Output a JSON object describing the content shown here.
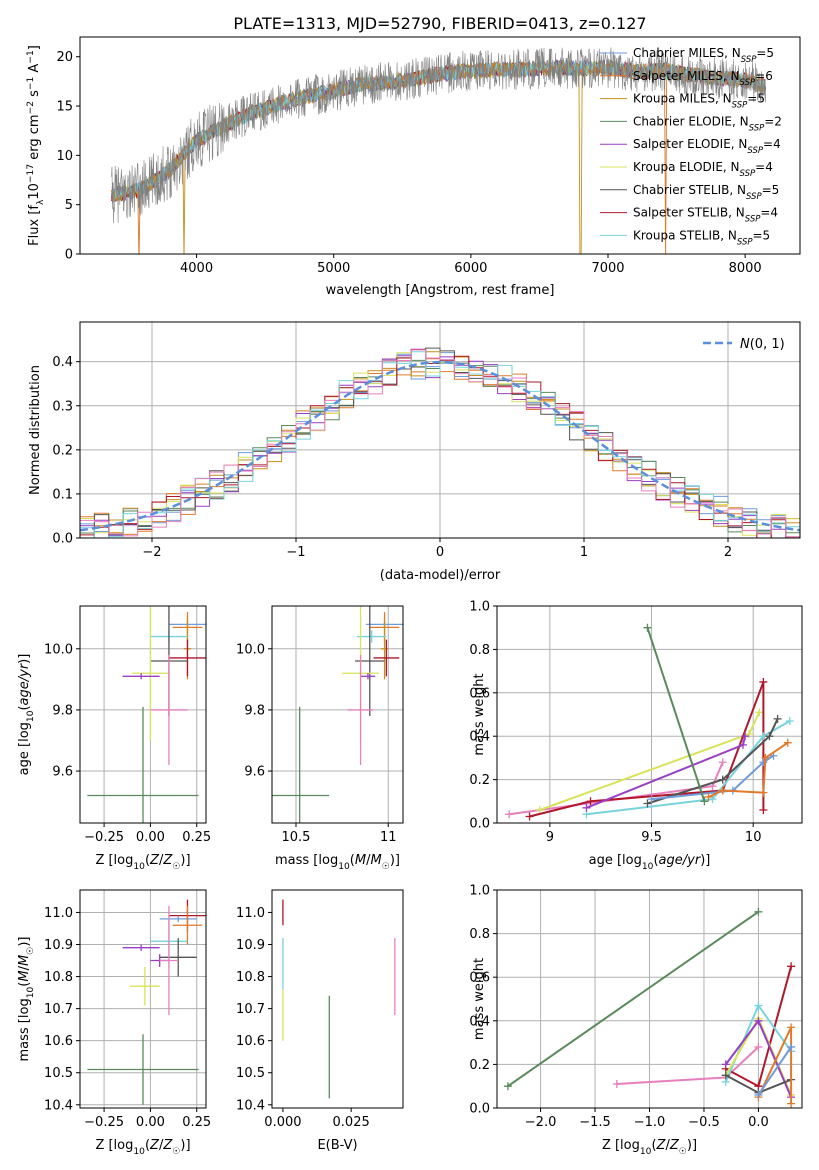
{
  "figure_title": "PLATE=1313, MJD=52790, FIBERID=0413, z=0.127",
  "colors": {
    "ch_miles": "#6f9bdb",
    "sa_miles": "#e07a2a",
    "kr_miles": "#c98f1c",
    "ch_elodie": "#5a8a5c",
    "sa_elodie": "#9a3ec5",
    "kr_elodie": "#d8e35a",
    "ch_stelib": "#555555",
    "sa_stelib": "#b0172a",
    "kr_stelib": "#77d3de",
    "pink": "#e87fbd",
    "gray_spec": "#808080",
    "normal_curve": "#5b8fdb",
    "grid": "#b0b0b0"
  },
  "legend_entries": [
    {
      "key": "ch_miles",
      "base": "Chabrier MILES, N",
      "sub": "SSP",
      "suffix": "=5"
    },
    {
      "key": "sa_miles",
      "base": "Salpeter MILES, N",
      "sub": "SSP",
      "suffix": "=6"
    },
    {
      "key": "kr_miles",
      "base": "Kroupa MILES, N",
      "sub": "SSP",
      "suffix": "=5"
    },
    {
      "key": "ch_elodie",
      "base": "Chabrier ELODIE, N",
      "sub": "SSP",
      "suffix": "=2"
    },
    {
      "key": "sa_elodie",
      "base": "Salpeter ELODIE, N",
      "sub": "SSP",
      "suffix": "=4"
    },
    {
      "key": "kr_elodie",
      "base": "Kroupa ELODIE, N",
      "sub": "SSP",
      "suffix": "=4"
    },
    {
      "key": "ch_stelib",
      "base": "Chabrier STELIB, N",
      "sub": "SSP",
      "suffix": "=5"
    },
    {
      "key": "sa_stelib",
      "base": "Salpeter STELIB, N",
      "sub": "SSP",
      "suffix": "=4"
    },
    {
      "key": "kr_stelib",
      "base": "Kroupa STELIB, N",
      "sub": "SSP",
      "suffix": "=5"
    }
  ],
  "chart_data": [
    {
      "id": "spectrum",
      "type": "line",
      "xlabel": "wavelength [Angstrom, rest frame]",
      "ylabel": "Flux [f_λ 10^-17 erg cm^-2 s^-1 A^-1]",
      "xlim": [
        3150,
        8400
      ],
      "ylim": [
        0,
        22
      ],
      "xticks": [
        4000,
        5000,
        6000,
        7000,
        8000
      ],
      "yticks": [
        0,
        5,
        10,
        15,
        20
      ],
      "grid": false,
      "legend_position": "top-right",
      "continuum": {
        "x": [
          3400,
          3600,
          3800,
          4000,
          4200,
          4400,
          4600,
          4800,
          5000,
          5200,
          5400,
          5600,
          5800,
          6000,
          6200,
          6400,
          6600,
          6800,
          7000,
          7200,
          7400,
          7600,
          7800,
          8000,
          8150
        ],
        "y": [
          6.0,
          6.5,
          8.5,
          11.5,
          13.0,
          14.3,
          15.2,
          16.0,
          16.5,
          17.2,
          17.4,
          17.8,
          18.3,
          18.6,
          18.7,
          18.7,
          18.9,
          18.8,
          18.9,
          18.5,
          18.6,
          18.2,
          17.8,
          17.6,
          17.0
        ]
      },
      "model_drops": [
        {
          "x": 3580,
          "key": "sa_miles"
        },
        {
          "x": 3905,
          "key": "kr_miles"
        },
        {
          "x": 6800,
          "key": "kr_miles"
        },
        {
          "x": 7420,
          "key": "sa_miles"
        }
      ]
    },
    {
      "id": "residuals",
      "type": "histogram",
      "xlabel": "(data-model)/error",
      "ylabel": "Normed distribution",
      "xlim": [
        -2.5,
        2.5
      ],
      "ylim": [
        0,
        0.49
      ],
      "xticks": [
        -2,
        -1,
        0,
        1,
        2
      ],
      "xtick_labels": [
        "−2",
        "−1",
        "0",
        "1",
        "2"
      ],
      "yticks": [
        0.0,
        0.1,
        0.2,
        0.3,
        0.4
      ],
      "grid": true,
      "legend": {
        "label": "N(0,1)",
        "position": "top-right"
      },
      "bin_width": 0.1
    },
    {
      "id": "age_vs_Z",
      "type": "errorbar",
      "xlabel": "Z [log10(Z/Z☉)]",
      "ylabel": "age [log10(age/yr)]",
      "xlim": [
        -0.38,
        0.3
      ],
      "ylim": [
        9.43,
        10.14
      ],
      "xticks": [
        -0.25,
        0.0,
        0.25
      ],
      "xtick_labels": [
        "−0.25",
        "0.00",
        "0.25"
      ],
      "yticks": [
        9.6,
        9.8,
        10.0
      ],
      "grid": true,
      "points": [
        {
          "key": "ch_miles",
          "x": 0.2,
          "xerr": 0.1,
          "y": 10.08,
          "yerr": 0.01
        },
        {
          "key": "sa_miles",
          "x": 0.2,
          "xerr": 0.08,
          "y": 10.07,
          "yerr": 0.05
        },
        {
          "key": "kr_miles",
          "x": 0.2,
          "xerr": 0.02,
          "y": 10.0,
          "yerr": 0.1
        },
        {
          "key": "kr_stelib",
          "x": 0.1,
          "xerr": 0.1,
          "y": 10.04,
          "yerr": 0.02
        },
        {
          "key": "sa_stelib",
          "x": 0.2,
          "xerr": 0.1,
          "y": 9.97,
          "yerr": 0.06
        },
        {
          "key": "ch_stelib",
          "x": 0.1,
          "xerr": 0.1,
          "y": 9.96,
          "yerr": 0.18
        },
        {
          "key": "kr_elodie",
          "x": 0.0,
          "xerr": 0.1,
          "y": 9.92,
          "yerr": 0.22
        },
        {
          "key": "sa_elodie",
          "x": -0.05,
          "xerr": 0.1,
          "y": 9.91,
          "yerr": 0.01
        },
        {
          "key": "pink",
          "x": 0.1,
          "xerr": 0.1,
          "y": 9.8,
          "yerr": 0.18
        },
        {
          "key": "ch_elodie",
          "x": -0.04,
          "xerr": 0.3,
          "y": 9.52,
          "yerr": 0.29
        }
      ]
    },
    {
      "id": "age_vs_mass",
      "type": "errorbar",
      "xlabel": "mass [log10(M/M☉)]",
      "ylabel": "",
      "xlim": [
        10.37,
        11.08
      ],
      "ylim": [
        9.43,
        10.14
      ],
      "xticks": [
        10.5,
        11.0
      ],
      "yticks": [
        9.6,
        9.8,
        10.0
      ],
      "grid": true,
      "points": [
        {
          "key": "ch_miles",
          "x": 10.98,
          "xerr": 0.1,
          "y": 10.08,
          "yerr": 0.01
        },
        {
          "key": "sa_miles",
          "x": 10.98,
          "xerr": 0.08,
          "y": 10.07,
          "yerr": 0.05
        },
        {
          "key": "kr_miles",
          "x": 10.98,
          "xerr": 0.02,
          "y": 10.0,
          "yerr": 0.1
        },
        {
          "key": "kr_stelib",
          "x": 10.91,
          "xerr": 0.08,
          "y": 10.04,
          "yerr": 0.02
        },
        {
          "key": "sa_stelib",
          "x": 10.99,
          "xerr": 0.07,
          "y": 9.97,
          "yerr": 0.06
        },
        {
          "key": "ch_stelib",
          "x": 10.9,
          "xerr": 0.08,
          "y": 9.96,
          "yerr": 0.18
        },
        {
          "key": "kr_elodie",
          "x": 10.85,
          "xerr": 0.1,
          "y": 9.92,
          "yerr": 0.22
        },
        {
          "key": "sa_elodie",
          "x": 10.89,
          "xerr": 0.04,
          "y": 9.91,
          "yerr": 0.01
        },
        {
          "key": "pink",
          "x": 10.85,
          "xerr": 0.07,
          "y": 9.8,
          "yerr": 0.18
        },
        {
          "key": "ch_elodie",
          "x": 10.52,
          "xerr": 0.16,
          "y": 9.52,
          "yerr": 0.29
        }
      ]
    },
    {
      "id": "weight_vs_age",
      "type": "line",
      "xlabel": "age [log10(age/yr)]",
      "ylabel": "mass weight",
      "xlim": [
        8.74,
        10.24
      ],
      "ylim": [
        0.0,
        1.0
      ],
      "xticks": [
        9.0,
        9.5,
        10.0
      ],
      "yticks": [
        0.0,
        0.2,
        0.4,
        0.6,
        0.8,
        1.0
      ],
      "grid": true,
      "series": [
        {
          "key": "pink",
          "x": [
            8.8,
            9.8,
            9.85
          ],
          "y": [
            0.04,
            0.17,
            0.28
          ]
        },
        {
          "key": "kr_elodie",
          "x": [
            8.95,
            9.98,
            10.03
          ],
          "y": [
            0.06,
            0.41,
            0.51
          ]
        },
        {
          "key": "sa_stelib",
          "x": [
            8.9,
            9.2,
            9.85,
            10.05,
            10.05
          ],
          "y": [
            0.03,
            0.1,
            0.15,
            0.65,
            0.06
          ]
        },
        {
          "key": "kr_stelib",
          "x": [
            9.18,
            9.8,
            10.05,
            10.18
          ],
          "y": [
            0.04,
            0.11,
            0.4,
            0.47
          ]
        },
        {
          "key": "sa_elodie",
          "x": [
            9.18,
            9.95,
            9.96
          ],
          "y": [
            0.07,
            0.36,
            0.4
          ]
        },
        {
          "key": "ch_stelib",
          "x": [
            9.48,
            9.85,
            10.08,
            10.12
          ],
          "y": [
            0.09,
            0.2,
            0.4,
            0.48
          ]
        },
        {
          "key": "ch_miles",
          "x": [
            9.5,
            9.9,
            10.05,
            10.1
          ],
          "y": [
            0.11,
            0.15,
            0.28,
            0.31
          ]
        },
        {
          "key": "sa_miles",
          "x": [
            9.78,
            9.85,
            10.05,
            10.06,
            10.17
          ],
          "y": [
            0.12,
            0.15,
            0.14,
            0.3,
            0.37
          ]
        },
        {
          "key": "ch_elodie",
          "x": [
            9.48,
            9.76
          ],
          "y": [
            0.9,
            0.1
          ]
        }
      ]
    },
    {
      "id": "mass_vs_Z",
      "type": "errorbar",
      "xlabel": "Z [log10(Z/Z☉)]",
      "ylabel": "mass [log10(M/M☉)]",
      "xlim": [
        -0.38,
        0.3
      ],
      "ylim": [
        10.39,
        11.07
      ],
      "xticks": [
        -0.25,
        0.0,
        0.25
      ],
      "xtick_labels": [
        "−0.25",
        "0.00",
        "0.25"
      ],
      "yticks": [
        10.4,
        10.5,
        10.6,
        10.7,
        10.8,
        10.9,
        11.0
      ],
      "grid": true,
      "points": [
        {
          "key": "sa_stelib",
          "x": 0.2,
          "xerr": 0.1,
          "y": 10.99,
          "yerr": 0.05
        },
        {
          "key": "ch_miles",
          "x": 0.15,
          "xerr": 0.1,
          "y": 10.98,
          "yerr": 0.01
        },
        {
          "key": "sa_miles",
          "x": 0.2,
          "xerr": 0.08,
          "y": 10.96,
          "yerr": 0.06
        },
        {
          "key": "kr_stelib",
          "x": 0.1,
          "xerr": 0.1,
          "y": 10.91,
          "yerr": 0.08
        },
        {
          "key": "sa_elodie",
          "x": -0.05,
          "xerr": 0.1,
          "y": 10.89,
          "yerr": 0.01
        },
        {
          "key": "ch_stelib",
          "x": 0.15,
          "xerr": 0.1,
          "y": 10.86,
          "yerr": 0.06
        },
        {
          "key": "sa_elodie",
          "x": 0.05,
          "xerr": 0.05,
          "y": 10.85,
          "yerr": 0.02
        },
        {
          "key": "kr_elodie",
          "x": -0.03,
          "xerr": 0.08,
          "y": 10.77,
          "yerr": 0.06
        },
        {
          "key": "pink",
          "x": 0.1,
          "xerr": 0.05,
          "y": 10.85,
          "yerr": 0.17
        },
        {
          "key": "ch_elodie",
          "x": -0.04,
          "xerr": 0.3,
          "y": 10.51,
          "yerr": 0.11
        }
      ]
    },
    {
      "id": "mass_vs_ebv",
      "type": "errorbar",
      "xlabel": "E(B-V)",
      "ylabel": "",
      "xlim": [
        -0.004,
        0.044
      ],
      "ylim": [
        10.39,
        11.07
      ],
      "xticks": [
        0.0,
        0.025
      ],
      "xtick_labels": [
        "0.000",
        "0.025"
      ],
      "yticks": [
        10.4,
        10.5,
        10.6,
        10.7,
        10.8,
        10.9,
        11.0
      ],
      "grid": false,
      "points": [
        {
          "key": "sa_stelib",
          "x": 0.0,
          "xerr": 0.0,
          "y": 11.0,
          "yerr": 0.04
        },
        {
          "key": "kr_stelib",
          "x": 0.0,
          "xerr": 0.0,
          "y": 10.84,
          "yerr": 0.08
        },
        {
          "key": "kr_elodie",
          "x": 0.0,
          "xerr": 0.0,
          "y": 10.68,
          "yerr": 0.08
        },
        {
          "key": "ch_elodie",
          "x": 0.017,
          "xerr": 0.0,
          "y": 10.58,
          "yerr": 0.16
        },
        {
          "key": "pink",
          "x": 0.041,
          "xerr": 0.0,
          "y": 10.8,
          "yerr": 0.12
        }
      ]
    },
    {
      "id": "weight_vs_Z",
      "type": "line",
      "xlabel": "Z [log10(Z/Z☉)]",
      "ylabel": "mass weight",
      "xlim": [
        -2.4,
        0.4
      ],
      "ylim": [
        0.0,
        1.0
      ],
      "xticks": [
        -2.0,
        -1.5,
        -1.0,
        -0.5,
        0.0
      ],
      "xtick_labels": [
        "−2.0",
        "−1.5",
        "−1.0",
        "−0.5",
        "0.0"
      ],
      "yticks": [
        0.0,
        0.2,
        0.4,
        0.6,
        0.8,
        1.0
      ],
      "grid": true,
      "series": [
        {
          "key": "ch_elodie",
          "x": [
            -2.3,
            0.0
          ],
          "y": [
            0.1,
            0.9
          ]
        },
        {
          "key": "pink",
          "x": [
            -1.3,
            -0.3,
            0.0
          ],
          "y": [
            0.11,
            0.14,
            0.28
          ]
        },
        {
          "key": "sa_stelib",
          "x": [
            -0.3,
            0.0,
            0.3
          ],
          "y": [
            0.18,
            0.1,
            0.65
          ]
        },
        {
          "key": "kr_stelib",
          "x": [
            -0.3,
            0.0,
            0.3
          ],
          "y": [
            0.12,
            0.47,
            0.26
          ]
        },
        {
          "key": "kr_elodie",
          "x": [
            -0.3,
            0.0,
            0.3
          ],
          "y": [
            0.15,
            0.41,
            0.06
          ]
        },
        {
          "key": "sa_elodie",
          "x": [
            -0.3,
            0.0,
            0.3
          ],
          "y": [
            0.2,
            0.4,
            0.05
          ]
        },
        {
          "key": "ch_stelib",
          "x": [
            -0.3,
            0.0,
            0.3
          ],
          "y": [
            0.15,
            0.07,
            0.13
          ]
        },
        {
          "key": "sa_miles",
          "x": [
            0.0,
            0.3,
            0.3
          ],
          "y": [
            0.05,
            0.37,
            0.02
          ]
        },
        {
          "key": "ch_miles",
          "x": [
            0.0,
            0.3
          ],
          "y": [
            0.06,
            0.28
          ]
        }
      ]
    }
  ]
}
